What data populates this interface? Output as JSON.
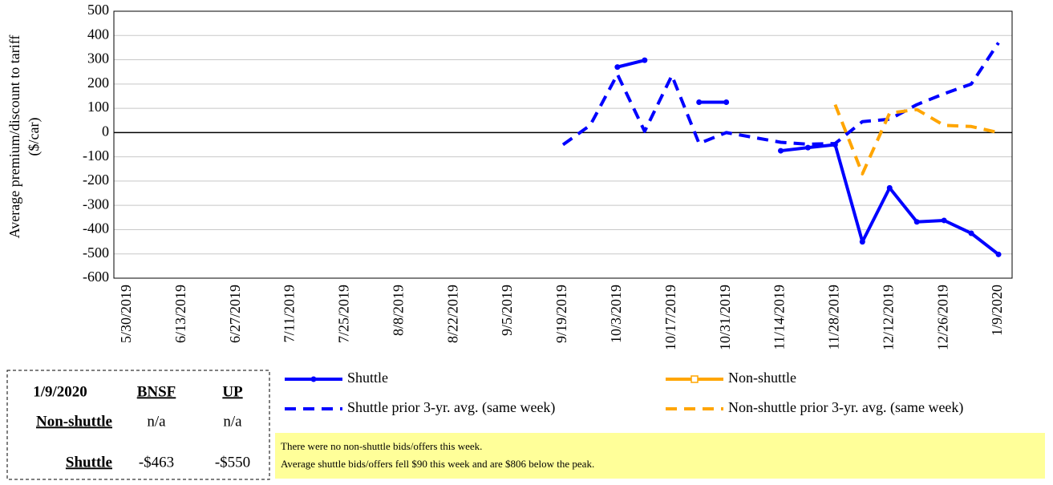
{
  "chart_data": {
    "type": "line",
    "y_label_lines": [
      "Average premium/discount to tariff",
      "($/car)"
    ],
    "categories": [
      "5/30/2019",
      null,
      "6/13/2019",
      null,
      "6/27/2019",
      null,
      "7/11/2019",
      null,
      "7/25/2019",
      null,
      "8/8/2019",
      null,
      "8/22/2019",
      null,
      "9/5/2019",
      null,
      "9/19/2019",
      null,
      "10/3/2019",
      null,
      "10/17/2019",
      null,
      "10/31/2019",
      null,
      "11/14/2019",
      null,
      "11/28/2019",
      null,
      "12/12/2019",
      null,
      "12/26/2019",
      null,
      "1/9/2020"
    ],
    "ylim": [
      -600,
      500
    ],
    "yticks": [
      -600,
      -500,
      -400,
      -300,
      -200,
      -100,
      0,
      100,
      200,
      300,
      400,
      500
    ],
    "grid": true,
    "series": [
      {
        "name": "Shuttle",
        "color": "#0000ff",
        "dash": false,
        "marker": "circle",
        "values": [
          null,
          null,
          null,
          null,
          null,
          null,
          null,
          null,
          null,
          null,
          null,
          null,
          null,
          null,
          null,
          null,
          null,
          null,
          270,
          298,
          null,
          125,
          125,
          null,
          -75,
          -62,
          -50,
          -450,
          -228,
          -368,
          -362,
          -415,
          -502
        ]
      },
      {
        "name": "Non-shuttle",
        "color": "#ffa500",
        "dash": false,
        "marker": "square",
        "values": [
          null,
          null,
          null,
          null,
          null,
          null,
          null,
          null,
          null,
          null,
          null,
          null,
          null,
          null,
          null,
          null,
          null,
          null,
          null,
          null,
          null,
          null,
          null,
          null,
          null,
          null,
          null,
          null,
          null,
          null,
          null,
          null,
          null
        ]
      },
      {
        "name": "Shuttle prior 3-yr. avg. (same week)",
        "color": "#0000ff",
        "dash": true,
        "marker": "none",
        "values": [
          null,
          null,
          null,
          null,
          null,
          null,
          null,
          null,
          null,
          null,
          null,
          null,
          null,
          null,
          null,
          null,
          -50,
          30,
          240,
          5,
          235,
          -45,
          0,
          -20,
          -40,
          -48,
          -45,
          45,
          55,
          115,
          160,
          200,
          370
        ]
      },
      {
        "name": "Non-shuttle prior 3-yr. avg. (same week)",
        "color": "#ffa500",
        "dash": true,
        "marker": "none",
        "values": [
          null,
          null,
          null,
          null,
          null,
          null,
          null,
          null,
          null,
          null,
          null,
          null,
          null,
          null,
          null,
          null,
          null,
          null,
          null,
          null,
          null,
          null,
          null,
          null,
          null,
          null,
          115,
          -170,
          80,
          95,
          30,
          25,
          0
        ]
      }
    ]
  },
  "summary_table": {
    "header": [
      "1/9/2020",
      "BNSF",
      "UP"
    ],
    "rows": [
      [
        "Non-shuttle",
        "n/a",
        "n/a"
      ],
      [
        "Shuttle",
        "-$463",
        "-$550"
      ]
    ]
  },
  "note": [
    "There were no non-shuttle bids/offers  this week.",
    "Average shuttle bids/offers  fell  $90 this week and are $806 below the peak."
  ]
}
